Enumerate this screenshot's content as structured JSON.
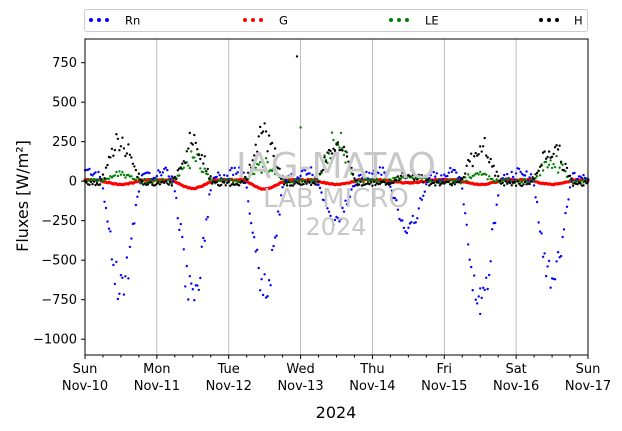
{
  "chart_data": {
    "type": "scatter",
    "ylabel": "Fluxes [W/m²]",
    "xlabel": "2024",
    "ylim": [
      -1100,
      900
    ],
    "xlim": [
      0,
      7
    ],
    "yticks": [
      -1000,
      -750,
      -500,
      -250,
      0,
      250,
      500,
      750
    ],
    "grid": "vertical lines at day ticks",
    "legend_placement": "top, outside plot",
    "x_ticks": [
      {
        "x": 0,
        "day": "Sun",
        "date": "Nov-10"
      },
      {
        "x": 1,
        "day": "Mon",
        "date": "Nov-11"
      },
      {
        "x": 2,
        "day": "Tue",
        "date": "Nov-12"
      },
      {
        "x": 3,
        "day": "Wed",
        "date": "Nov-13"
      },
      {
        "x": 4,
        "day": "Thu",
        "date": "Nov-14"
      },
      {
        "x": 5,
        "day": "Fri",
        "date": "Nov-15"
      },
      {
        "x": 6,
        "day": "Sat",
        "date": "Nov-16"
      },
      {
        "x": 7,
        "day": "Sun",
        "date": "Nov-17"
      }
    ],
    "watermark": [
      "IAG-MATAO",
      "LAB MICRO",
      "2024"
    ],
    "series": [
      {
        "name": "Rn",
        "color": "#0000ff"
      },
      {
        "name": "G",
        "color": "#ff0000"
      },
      {
        "name": "LE",
        "color": "#008000"
      },
      {
        "name": "H",
        "color": "#000000"
      }
    ],
    "daytime_peaks": [
      {
        "day": 0,
        "Rn_min": -730,
        "H_max": 320,
        "LE_max": 60,
        "G_min": -20
      },
      {
        "day": 1,
        "Rn_min": -780,
        "H_max": 310,
        "LE_max": 190,
        "G_min": -45
      },
      {
        "day": 2,
        "Rn_min": -720,
        "H_max": 360,
        "LE_max": 150,
        "G_min": -50
      },
      {
        "day": 3,
        "Rn_min": -250,
        "H_max": 300,
        "LE_max": 340,
        "G_min": -20
      },
      {
        "day": 4,
        "Rn_min": -330,
        "H_max": 60,
        "LE_max": 40,
        "G_min": -10
      },
      {
        "day": 5,
        "Rn_min": -850,
        "H_max": 280,
        "LE_max": 60,
        "G_min": -20
      },
      {
        "day": 6,
        "Rn_min": -650,
        "H_max": 270,
        "LE_max": 190,
        "G_min": -20
      }
    ],
    "outliers": [
      {
        "series": "H",
        "x": 2.95,
        "y": 790
      },
      {
        "series": "LE",
        "x": 3.0,
        "y": 340
      },
      {
        "series": "Rn",
        "x": 5.5,
        "y": -840
      }
    ]
  }
}
